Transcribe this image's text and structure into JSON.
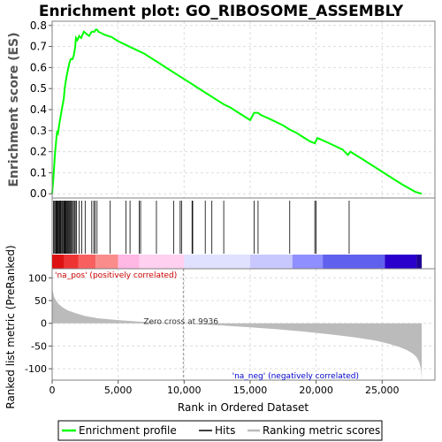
{
  "chart_data": {
    "type": "line",
    "title": "Enrichment plot: GO_RIBOSOME_ASSEMBLY",
    "top_panel": {
      "ylabel": "Enrichment score (ES)",
      "ylim": [
        -0.02,
        0.82
      ],
      "yticks": [
        "0.0",
        "0.1",
        "0.2",
        "0.3",
        "0.4",
        "0.5",
        "0.6",
        "0.7",
        "0.8"
      ],
      "ytick_values": [
        0.0,
        0.1,
        0.2,
        0.3,
        0.4,
        0.5,
        0.6,
        0.7,
        0.8
      ],
      "grid": true,
      "line_color": "#00ff00",
      "series": [
        {
          "name": "Enrichment profile",
          "x": [
            0,
            100,
            200,
            300,
            380,
            450,
            560,
            650,
            760,
            880,
            950,
            1020,
            1100,
            1200,
            1300,
            1400,
            1550,
            1650,
            1750,
            1800,
            1900,
            2050,
            2200,
            2400,
            2600,
            2800,
            3000,
            3200,
            3300,
            3400,
            3500,
            4000,
            4500,
            5000,
            5500,
            6000,
            6500,
            7000,
            7500,
            8000,
            8500,
            9000,
            9500,
            10000,
            10500,
            11000,
            11500,
            12000,
            12500,
            13000,
            13500,
            14000,
            14500,
            15000,
            15300,
            15600,
            15800,
            16500,
            17500,
            18000,
            18500,
            19000,
            19500,
            19900,
            20100,
            21000,
            22000,
            22400,
            22600,
            23500,
            24500,
            25500,
            26500,
            27500,
            28000
          ],
          "y": [
            0.0,
            0.08,
            0.18,
            0.25,
            0.3,
            0.29,
            0.34,
            0.37,
            0.41,
            0.45,
            0.5,
            0.53,
            0.56,
            0.59,
            0.62,
            0.64,
            0.64,
            0.66,
            0.7,
            0.74,
            0.73,
            0.75,
            0.74,
            0.77,
            0.76,
            0.75,
            0.77,
            0.77,
            0.78,
            0.78,
            0.77,
            0.755,
            0.745,
            0.725,
            0.71,
            0.695,
            0.68,
            0.665,
            0.645,
            0.625,
            0.605,
            0.585,
            0.565,
            0.545,
            0.525,
            0.505,
            0.485,
            0.465,
            0.445,
            0.425,
            0.41,
            0.39,
            0.37,
            0.35,
            0.385,
            0.385,
            0.375,
            0.355,
            0.325,
            0.305,
            0.29,
            0.27,
            0.25,
            0.24,
            0.265,
            0.24,
            0.21,
            0.185,
            0.2,
            0.165,
            0.125,
            0.085,
            0.045,
            0.01,
            0.0
          ]
        }
      ]
    },
    "hits_panel": {
      "hits": [
        100,
        180,
        250,
        300,
        340,
        380,
        420,
        480,
        540,
        600,
        650,
        720,
        780,
        850,
        900,
        950,
        1000,
        1060,
        1120,
        1180,
        1240,
        1300,
        1380,
        1450,
        1520,
        1600,
        1680,
        1750,
        1850,
        2050,
        2250,
        2500,
        3000,
        3150,
        3250,
        3400,
        4400,
        5600,
        5900,
        6600,
        6700,
        7900,
        9200,
        9700,
        9800,
        10600,
        10650,
        11600,
        12100,
        13000,
        15300,
        15600,
        18000,
        19900,
        20000,
        22500
      ]
    },
    "rank_strip": {
      "colors": [
        "#dd1111",
        "#ee3333",
        "#f86060",
        "#fb8c8c",
        "#ffb8e4",
        "#ffd0f0",
        "#e0e0ff",
        "#c8c8ff",
        "#8f8fff",
        "#6060ee",
        "#2a00cc",
        "#1e0096"
      ],
      "stops": [
        0,
        900,
        2000,
        3300,
        5000,
        6600,
        10000,
        15000,
        18200,
        20500,
        25200,
        27600,
        28000
      ]
    },
    "bottom_panel": {
      "ylabel": "Ranked list metric (PreRanked)",
      "xlabel": "Rank in Ordered Dataset",
      "ylim": [
        -125,
        120
      ],
      "yticks": [
        "100",
        "50",
        "0",
        "-50",
        "-100"
      ],
      "ytick_values": [
        100,
        50,
        0,
        -50,
        -100
      ],
      "xlim": [
        0,
        29000
      ],
      "xticks": [
        "0",
        "5,000",
        "10,000",
        "15,000",
        "20,000",
        "25,000"
      ],
      "xtick_values": [
        0,
        5000,
        10000,
        15000,
        20000,
        25000
      ],
      "metric_color": "#bbbbbb",
      "metric_x": [
        0,
        50,
        150,
        300,
        500,
        800,
        1200,
        1800,
        2500,
        3500,
        5000,
        6500,
        8000,
        9000,
        9936,
        11000,
        13000,
        15000,
        17000,
        19000,
        21000,
        23000,
        24500,
        25500,
        26300,
        26900,
        27300,
        27600,
        27800,
        27950,
        28000
      ],
      "metric_y": [
        95,
        70,
        58,
        50,
        42,
        35,
        28,
        22,
        16,
        11,
        7,
        4,
        2,
        1,
        0,
        -2,
        -5,
        -9,
        -13,
        -18,
        -24,
        -31,
        -38,
        -45,
        -52,
        -59,
        -66,
        -74,
        -85,
        -100,
        -125
      ],
      "zero_cross_label": "Zero cross at 9936",
      "zero_cross": 9936,
      "pos_label": "'na_pos' (positively correlated)",
      "neg_label": "'na_neg' (negatively correlated)",
      "pos_color": "#cc0000",
      "neg_color": "#0000cc"
    },
    "legend": {
      "placement": "bottom",
      "items": [
        {
          "label": "Enrichment profile",
          "color": "#00ff00"
        },
        {
          "label": "Hits",
          "color": "#000000"
        },
        {
          "label": "Ranking metric scores",
          "color": "#bbbbbb"
        }
      ]
    }
  }
}
